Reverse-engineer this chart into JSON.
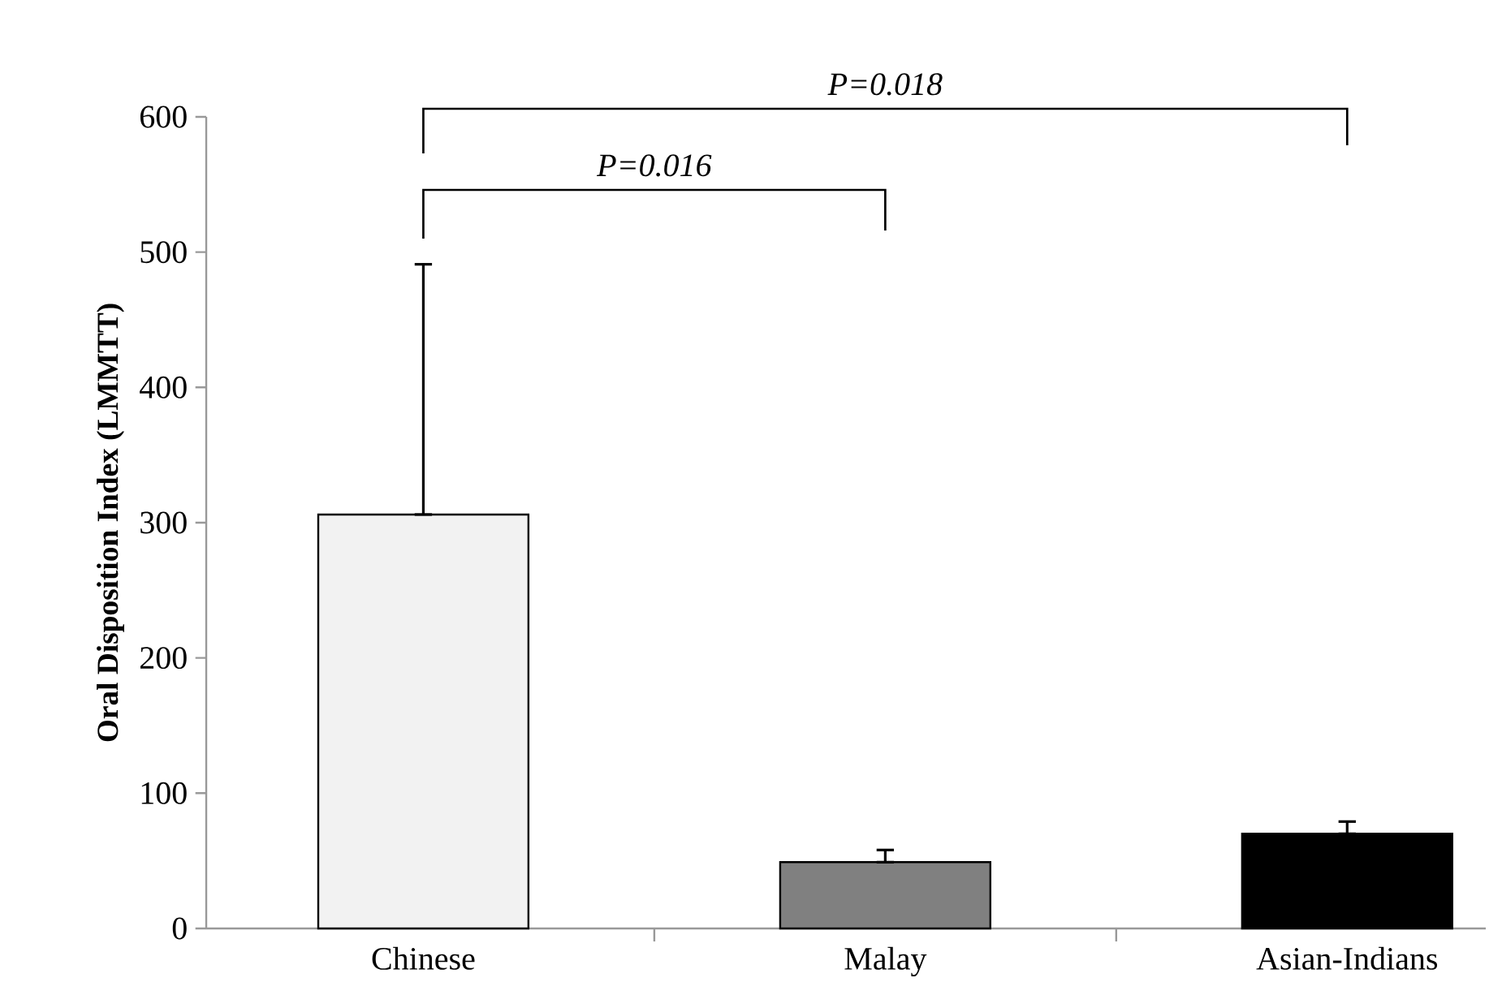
{
  "chart_data": {
    "type": "bar",
    "ylabel": "Oral Disposition Index (LMMTT)",
    "categories": [
      "Chinese",
      "Malay",
      "Asian-Indians"
    ],
    "values": [
      306,
      49,
      70
    ],
    "colors": [
      "#f2f2f2",
      "#808080",
      "#000000"
    ],
    "errors": [
      [
        306,
        491
      ],
      [
        49,
        58
      ],
      [
        70,
        79
      ]
    ],
    "ylim": [
      0,
      600
    ],
    "yticks": [
      0,
      100,
      200,
      300,
      400,
      500,
      600
    ],
    "annotations": [
      "P=0.016",
      "P=0.018"
    ]
  }
}
